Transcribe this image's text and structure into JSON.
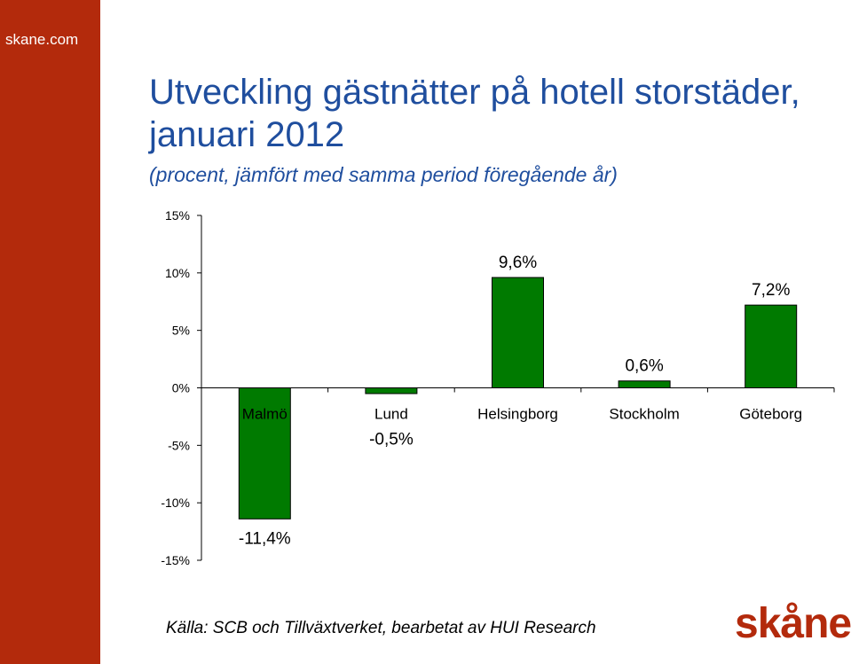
{
  "site": {
    "label": "skane.com"
  },
  "title": "Utveckling gästnätter på hotell storstäder, januari 2012",
  "subtitle": "(procent, jämfört med samma period föregående år)",
  "source": "Källa: SCB och Tillväxtverket, bearbetat av HUI Research",
  "logo_text": "skåne",
  "colors": {
    "sidebar": "#b32a0c",
    "bar": "#007a00",
    "title": "#1f4e9e",
    "logo": "#b32a0c"
  },
  "chart_data": {
    "type": "bar",
    "categories": [
      "Malmö",
      "Lund",
      "Helsingborg",
      "Stockholm",
      "Göteborg"
    ],
    "values": [
      -11.4,
      -0.5,
      9.6,
      0.6,
      7.2
    ],
    "value_labels": [
      "-11,4%",
      "-0,5%",
      "9,6%",
      "0,6%",
      "7,2%"
    ],
    "yticks": [
      15,
      10,
      5,
      0,
      -5,
      -10,
      -15
    ],
    "ytick_labels": [
      "15%",
      "10%",
      "5%",
      "0%",
      "-5%",
      "-10%",
      "-15%"
    ],
    "ylim": [
      -15,
      15
    ],
    "grid": false,
    "legend": "none"
  }
}
